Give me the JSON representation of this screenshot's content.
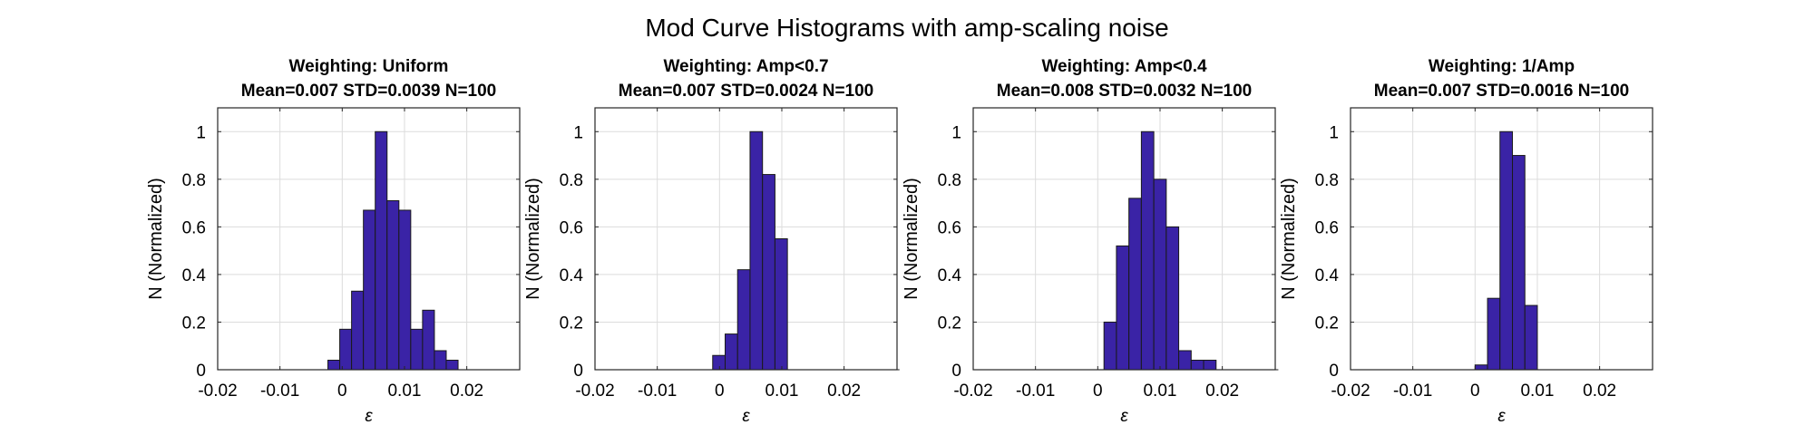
{
  "figure": {
    "title": "Mod Curve Histograms with amp-scaling noise",
    "colors": {
      "bar_fill": "#3A23A6",
      "bar_edge": "#1a1a1a",
      "grid": "#dcdcdc",
      "axis": "#262626",
      "text": "#000000"
    }
  },
  "chart_data": [
    {
      "type": "bar",
      "title": "Weighting: Uniform",
      "subtitle": "Mean=0.007 STD=0.0039 N=100",
      "xlabel": "ε",
      "ylabel": "N (Normalized)",
      "xlim": [
        -0.02,
        0.0285
      ],
      "ylim": [
        0,
        1.1
      ],
      "xticks": [
        -0.02,
        -0.01,
        0,
        0.01,
        0.02
      ],
      "xtick_labels": [
        "-0.02",
        "-0.01",
        "0",
        "0.01",
        "0.02"
      ],
      "yticks": [
        0,
        0.2,
        0.4,
        0.6,
        0.8,
        1
      ],
      "ytick_labels": [
        "0",
        "0.2",
        "0.4",
        "0.6",
        "0.8",
        "1"
      ],
      "grid": true,
      "bin_edges": [
        -0.0156,
        -0.0137,
        -0.0118,
        -0.0099,
        -0.008,
        -0.0061,
        -0.0042,
        -0.0023,
        -0.0004,
        0.0015,
        0.0034,
        0.0053,
        0.0072,
        0.0091,
        0.011,
        0.0129,
        0.0148,
        0.0167,
        0.0186,
        0.0205,
        0.0224,
        0.0243,
        0.0262,
        0.0281
      ],
      "values": [
        0,
        0,
        0,
        0,
        0,
        0,
        0,
        0.04,
        0.17,
        0.33,
        0.67,
        1.0,
        0.71,
        0.67,
        0.17,
        0.25,
        0.08,
        0.04,
        0,
        0,
        0,
        0,
        0
      ]
    },
    {
      "type": "bar",
      "title": "Weighting: Amp<0.7",
      "subtitle": "Mean=0.007 STD=0.0024 N=100",
      "xlabel": "ε",
      "ylabel": "N (Normalized)",
      "xlim": [
        -0.02,
        0.0285
      ],
      "ylim": [
        0,
        1.1
      ],
      "xticks": [
        -0.02,
        -0.01,
        0,
        0.01,
        0.02
      ],
      "xtick_labels": [
        "-0.02",
        "-0.01",
        "0",
        "0.01",
        "0.02"
      ],
      "yticks": [
        0,
        0.2,
        0.4,
        0.6,
        0.8,
        1
      ],
      "ytick_labels": [
        "0",
        "0.2",
        "0.4",
        "0.6",
        "0.8",
        "1"
      ],
      "grid": true,
      "bin_edges": [
        -0.0131,
        -0.0111,
        -0.0091,
        -0.0071,
        -0.0051,
        -0.0031,
        -0.0011,
        0.0009,
        0.0029,
        0.0049,
        0.0069,
        0.0089,
        0.0109,
        0.0129,
        0.0149,
        0.0169,
        0.0189,
        0.0209,
        0.0229,
        0.0249,
        0.0269,
        0.0289
      ],
      "values": [
        0,
        0,
        0,
        0,
        0,
        0,
        0.06,
        0.15,
        0.42,
        1.0,
        0.82,
        0.55,
        0,
        0,
        0,
        0,
        0,
        0,
        0,
        0,
        0
      ]
    },
    {
      "type": "bar",
      "title": "Weighting: Amp<0.4",
      "subtitle": "Mean=0.008 STD=0.0032 N=100",
      "xlabel": "ε",
      "ylabel": "N (Normalized)",
      "xlim": [
        -0.02,
        0.0285
      ],
      "ylim": [
        0,
        1.1
      ],
      "xticks": [
        -0.02,
        -0.01,
        0,
        0.01,
        0.02
      ],
      "xtick_labels": [
        "-0.02",
        "-0.01",
        "0",
        "0.01",
        "0.02"
      ],
      "yticks": [
        0,
        0.2,
        0.4,
        0.6,
        0.8,
        1
      ],
      "ytick_labels": [
        "0",
        "0.2",
        "0.4",
        "0.6",
        "0.8",
        "1"
      ],
      "grid": true,
      "bin_edges": [
        -0.0138,
        -0.0118,
        -0.0098,
        -0.0078,
        -0.0058,
        -0.0038,
        -0.0018,
        0.0002,
        0.001,
        0.003,
        0.005,
        0.007,
        0.009,
        0.011,
        0.013,
        0.015,
        0.017,
        0.019,
        0.021,
        0.023,
        0.025,
        0.027,
        0.029
      ],
      "values": [
        0,
        0,
        0,
        0,
        0,
        0,
        0,
        0,
        0.2,
        0.52,
        0.72,
        1.0,
        0.8,
        0.6,
        0.08,
        0.04,
        0.04,
        0,
        0,
        0,
        0,
        0
      ]
    },
    {
      "type": "bar",
      "title": "Weighting: 1/Amp",
      "subtitle": "Mean=0.007 STD=0.0016 N=100",
      "xlabel": "ε",
      "ylabel": "N (Normalized)",
      "xlim": [
        -0.02,
        0.0285
      ],
      "ylim": [
        0,
        1.1
      ],
      "xticks": [
        -0.02,
        -0.01,
        0,
        0.01,
        0.02
      ],
      "xtick_labels": [
        "-0.02",
        "-0.01",
        "0",
        "0.01",
        "0.02"
      ],
      "yticks": [
        0,
        0.2,
        0.4,
        0.6,
        0.8,
        1
      ],
      "ytick_labels": [
        "0",
        "0.2",
        "0.4",
        "0.6",
        "0.8",
        "1"
      ],
      "grid": true,
      "bin_edges": [
        -0.0132,
        -0.0112,
        -0.0092,
        -0.0072,
        -0.0052,
        -0.0032,
        -0.0012,
        0.0,
        0.002,
        0.004,
        0.006,
        0.008,
        0.01,
        0.012,
        0.014,
        0.016,
        0.018,
        0.02,
        0.022,
        0.024,
        0.026,
        0.028
      ],
      "values": [
        0,
        0,
        0,
        0,
        0,
        0,
        0,
        0.02,
        0.3,
        1.0,
        0.9,
        0.27,
        0,
        0,
        0,
        0,
        0,
        0,
        0,
        0,
        0
      ]
    }
  ]
}
